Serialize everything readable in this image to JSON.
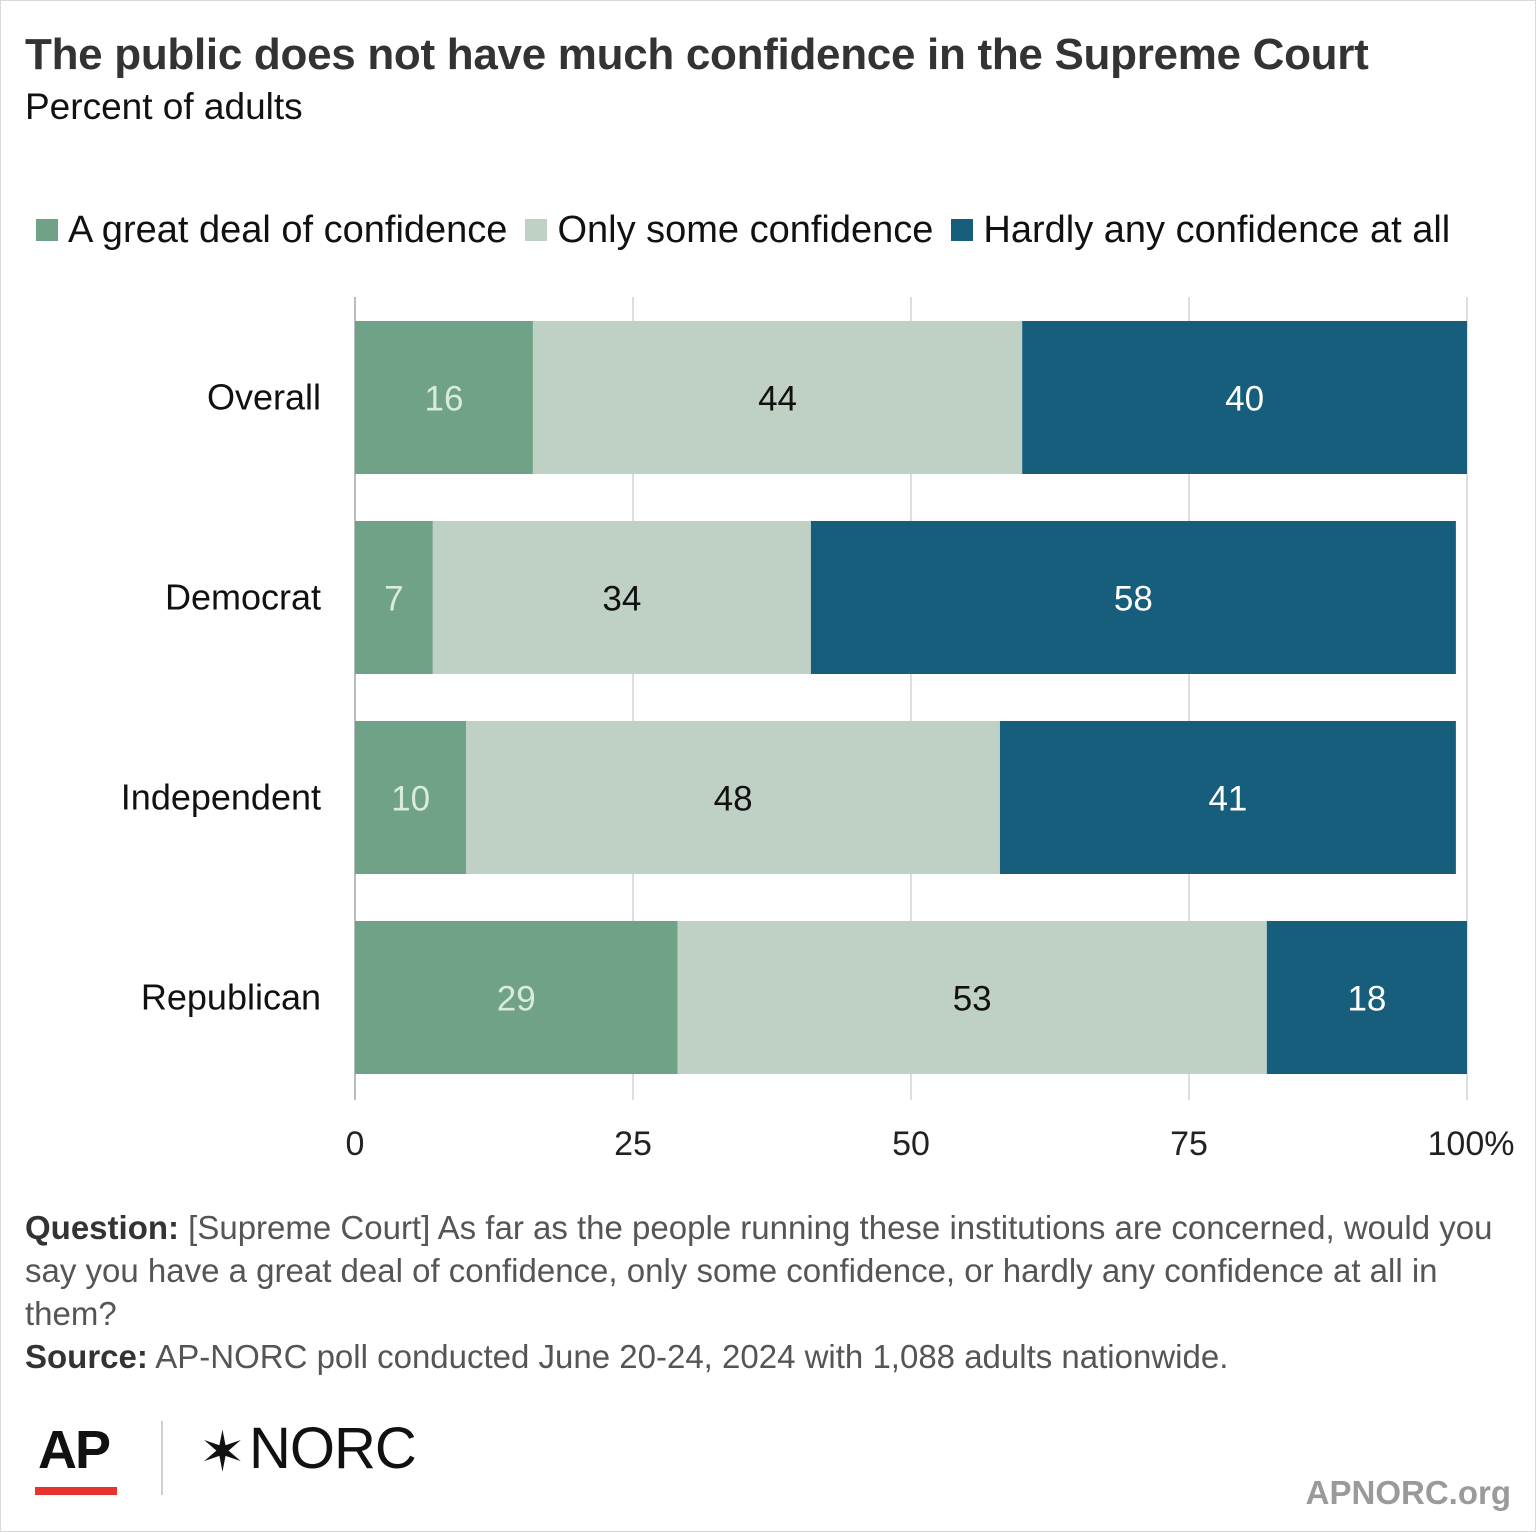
{
  "title": "The public does not have much confidence in the Supreme Court",
  "subtitle": "Percent of adults",
  "legend": [
    {
      "label": "A great deal of confidence",
      "color": "#6fa287"
    },
    {
      "label": "Only some confidence",
      "color": "#bfd0c4"
    },
    {
      "label": "Hardly any confidence at all",
      "color": "#175d7c"
    }
  ],
  "chart_data": {
    "type": "bar",
    "orientation": "horizontal",
    "stacked": true,
    "categories": [
      "Overall",
      "Democrat",
      "Independent",
      "Republican"
    ],
    "series": [
      {
        "name": "A great deal of confidence",
        "values": [
          16,
          7,
          10,
          29
        ],
        "color": "#6fa287",
        "label_color": "#d8ecd9"
      },
      {
        "name": "Only some confidence",
        "values": [
          44,
          34,
          48,
          53
        ],
        "color": "#bfd0c4",
        "label_color": "#111111"
      },
      {
        "name": "Hardly any confidence at all",
        "values": [
          40,
          58,
          41,
          18
        ],
        "color": "#175d7c",
        "label_color": "#ffffff"
      }
    ],
    "xlim": [
      0,
      100
    ],
    "ticks": [
      "0",
      "25",
      "50",
      "75",
      "100"
    ],
    "tick_suffix": "%",
    "grid": true
  },
  "notes": {
    "question_label": "Question:",
    "question_text": " [Supreme Court] As far as the people running these institutions are concerned, would you say you have a great deal of confidence, only some confidence, or hardly any confidence at all in them?",
    "source_label": "Source:",
    "source_text": " AP-NORC poll conducted June 20-24, 2024 with 1,088 adults nationwide."
  },
  "logos": {
    "ap": "AP",
    "norc_star": "✶",
    "norc": "NORC"
  },
  "site": "APNORC.org"
}
